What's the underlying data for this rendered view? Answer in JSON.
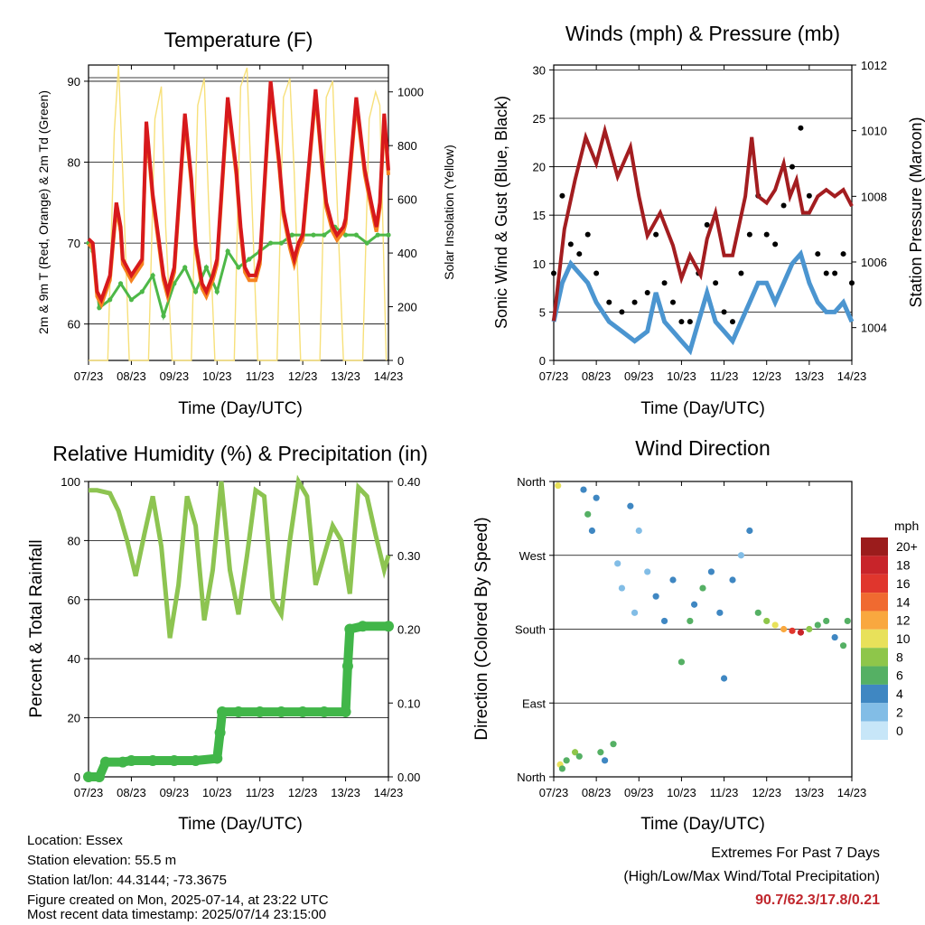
{
  "panels": {
    "temperature": {
      "title": "Temperature (F)",
      "ylabel_left": "2m & 9m T (Red, Orange) & 2m Td (Green)",
      "ylabel_right": "Solar Insolation (Yellow)",
      "xlabel": "Time (Day/UTC)"
    },
    "winds": {
      "title": "Winds (mph) & Pressure (mb)",
      "ylabel_left": "Sonic Wind & Gust (Blue, Black)",
      "ylabel_right": "Station Pressure (Maroon)",
      "xlabel": "Time (Day/UTC)"
    },
    "humidity": {
      "title": "Relative Humidity (%) & Precipitation (in)",
      "ylabel_left": "Percent & Total Rainfall",
      "xlabel": "Time (Day/UTC)"
    },
    "direction": {
      "title": "Wind Direction",
      "ylabel_left": "Direction (Colored By Speed)",
      "xlabel": "Time (Day/UTC)",
      "colorbar_title": "mph",
      "colorbar_labels": [
        "20+",
        "18",
        "16",
        "14",
        "12",
        "10",
        "8",
        "6",
        "4",
        "2",
        "0"
      ],
      "colorbar_colors": [
        "#9b1c1c",
        "#c8242a",
        "#e0362d",
        "#f06a30",
        "#f9a83f",
        "#e8e15a",
        "#8ec64a",
        "#55b064",
        "#3f87c2",
        "#82bde6",
        "#c7e6f8"
      ]
    }
  },
  "colors": {
    "temp2m": "#d7191c",
    "temp9m": "#f6821f",
    "dewpoint": "#4db848",
    "solar": "#f7e07a",
    "wind": "#4b95d0",
    "gust": "#000000",
    "pressure": "#a31d20",
    "rh": "#8dc451",
    "precip": "#41b649"
  },
  "chart_data": [
    {
      "type": "line",
      "title": "Temperature (F)",
      "xlabel": "Time (Day/UTC)",
      "x_ticks": [
        "07/23",
        "08/23",
        "09/23",
        "10/23",
        "11/23",
        "12/23",
        "13/23",
        "14/23"
      ],
      "xlim": [
        7,
        14
      ],
      "ylim": [
        55.5,
        92
      ],
      "y_ticks": [
        60,
        70,
        80,
        90
      ],
      "y2lim": [
        0,
        1100
      ],
      "y2_ticks": [
        0,
        200,
        400,
        600,
        800,
        1000
      ],
      "series": [
        {
          "name": "2m & 9m T (Red, Orange)",
          "axis": "left",
          "x": [
            7.0,
            7.1,
            7.2,
            7.3,
            7.5,
            7.65,
            7.75,
            7.8,
            7.9,
            8.0,
            8.25,
            8.35,
            8.5,
            8.65,
            8.75,
            8.85,
            9.0,
            9.25,
            9.4,
            9.5,
            9.65,
            9.75,
            9.9,
            10.0,
            10.25,
            10.45,
            10.55,
            10.65,
            10.75,
            10.9,
            11.0,
            11.25,
            11.45,
            11.55,
            11.7,
            11.8,
            11.9,
            12.0,
            12.3,
            12.45,
            12.55,
            12.7,
            12.8,
            12.95,
            13.0,
            13.25,
            13.45,
            13.6,
            13.72,
            13.8,
            13.9,
            14.0
          ],
          "y": [
            70.5,
            70,
            64,
            63,
            66,
            75,
            72,
            68,
            67,
            66,
            68,
            85,
            76,
            70,
            66,
            64,
            67,
            86,
            78,
            70,
            65,
            64,
            66,
            68,
            88,
            79,
            72,
            67,
            66,
            66,
            68,
            90,
            80,
            74,
            70,
            68,
            70,
            71,
            89,
            80,
            75,
            72,
            71,
            72,
            73,
            88,
            79,
            75,
            72,
            75,
            86,
            79
          ]
        },
        {
          "name": "2m Td (Green)",
          "axis": "left",
          "x": [
            7.0,
            7.1,
            7.25,
            7.5,
            7.75,
            8.0,
            8.25,
            8.5,
            8.75,
            9.0,
            9.25,
            9.5,
            9.75,
            10.0,
            10.25,
            10.5,
            10.75,
            11.0,
            11.25,
            11.5,
            11.75,
            12.0,
            12.25,
            12.5,
            12.75,
            13.0,
            13.25,
            13.5,
            13.75,
            14.0
          ],
          "y": [
            70,
            69,
            62,
            63,
            65,
            63,
            64,
            66,
            61,
            65,
            67,
            64,
            67,
            64,
            69,
            67,
            68,
            69,
            70,
            70,
            71,
            71,
            71,
            71,
            72,
            71,
            71,
            70,
            71,
            71
          ]
        },
        {
          "name": "Solar Insolation (Yellow)",
          "axis": "right",
          "x": [
            7.0,
            7.45,
            7.6,
            7.7,
            7.8,
            7.95,
            8.4,
            8.55,
            8.7,
            8.8,
            8.95,
            9.4,
            9.55,
            9.7,
            9.8,
            9.95,
            10.4,
            10.55,
            10.7,
            10.8,
            10.95,
            11.4,
            11.55,
            11.7,
            11.8,
            11.95,
            12.4,
            12.55,
            12.7,
            12.8,
            12.95,
            13.4,
            13.55,
            13.7,
            13.8,
            13.95
          ],
          "y": [
            0,
            0,
            850,
            1100,
            700,
            0,
            0,
            900,
            1020,
            500,
            0,
            0,
            950,
            1050,
            600,
            0,
            0,
            1020,
            1090,
            650,
            0,
            0,
            980,
            1050,
            700,
            0,
            0,
            980,
            1040,
            600,
            0,
            0,
            900,
            1000,
            950,
            0
          ]
        }
      ]
    },
    {
      "type": "line",
      "title": "Winds (mph) & Pressure (mb)",
      "xlabel": "Time (Day/UTC)",
      "x_ticks": [
        "07/23",
        "08/23",
        "09/23",
        "10/23",
        "11/23",
        "12/23",
        "13/23",
        "14/23"
      ],
      "xlim": [
        7,
        14
      ],
      "ylim": [
        0,
        30.5
      ],
      "y_ticks": [
        0,
        5,
        10,
        15,
        20,
        25,
        30
      ],
      "y2lim": [
        1003,
        1012
      ],
      "y2_ticks": [
        1004,
        1006,
        1008,
        1010,
        1012
      ],
      "series": [
        {
          "name": "Sonic Wind & Gust (Blue, Black)",
          "axis": "left",
          "x": [
            7.0,
            7.2,
            7.4,
            7.6,
            7.8,
            8.0,
            8.3,
            8.6,
            8.9,
            9.2,
            9.4,
            9.6,
            9.8,
            10.0,
            10.2,
            10.4,
            10.6,
            10.8,
            11.0,
            11.2,
            11.4,
            11.6,
            11.8,
            12.0,
            12.2,
            12.4,
            12.6,
            12.8,
            13.0,
            13.2,
            13.4,
            13.6,
            13.8,
            14.0
          ],
          "y": [
            4,
            8,
            10,
            9,
            8,
            6,
            4,
            3,
            2,
            3,
            7,
            4,
            3,
            2,
            1,
            4,
            7,
            4,
            3,
            2,
            4,
            6,
            8,
            8,
            6,
            8,
            10,
            11,
            8,
            6,
            5,
            5,
            6,
            4
          ]
        },
        {
          "name": "Gust",
          "axis": "left",
          "x": [
            7.0,
            7.2,
            7.4,
            7.6,
            7.8,
            8.0,
            8.3,
            8.6,
            8.9,
            9.2,
            9.4,
            9.6,
            9.8,
            10.0,
            10.2,
            10.4,
            10.6,
            10.8,
            11.0,
            11.2,
            11.4,
            11.6,
            11.8,
            12.0,
            12.2,
            12.4,
            12.6,
            12.8,
            13.0,
            13.2,
            13.4,
            13.6,
            13.8,
            14.0
          ],
          "y": [
            9,
            17,
            12,
            11,
            13,
            9,
            6,
            5,
            6,
            7,
            13,
            8,
            6,
            4,
            4,
            9,
            14,
            8,
            5,
            4,
            9,
            13,
            17,
            13,
            12,
            16,
            20,
            24,
            17,
            11,
            9,
            9,
            11,
            8
          ]
        },
        {
          "name": "Station Pressure (Maroon)",
          "axis": "right",
          "x": [
            7.0,
            7.25,
            7.5,
            7.75,
            8.0,
            8.2,
            8.5,
            8.8,
            9.0,
            9.2,
            9.5,
            9.8,
            10.0,
            10.2,
            10.45,
            10.6,
            10.8,
            11.0,
            11.2,
            11.5,
            11.65,
            11.8,
            12.0,
            12.2,
            12.4,
            12.55,
            12.7,
            12.85,
            13.0,
            13.2,
            13.4,
            13.6,
            13.8,
            14.0
          ],
          "y": [
            1004.2,
            1007.0,
            1008.5,
            1009.8,
            1009.0,
            1010.0,
            1008.6,
            1009.5,
            1008.0,
            1006.8,
            1007.5,
            1006.5,
            1005.5,
            1006.2,
            1005.6,
            1006.7,
            1007.5,
            1006.2,
            1006.2,
            1008.0,
            1009.8,
            1008.0,
            1007.8,
            1008.2,
            1009.0,
            1008.0,
            1008.5,
            1007.5,
            1007.5,
            1008.0,
            1008.2,
            1008.0,
            1008.2,
            1007.7
          ]
        }
      ]
    },
    {
      "type": "line",
      "title": "Relative Humidity (%) & Precipitation (in)",
      "xlabel": "Time (Day/UTC)",
      "x_ticks": [
        "07/23",
        "08/23",
        "09/23",
        "10/23",
        "11/23",
        "12/23",
        "13/23",
        "14/23"
      ],
      "xlim": [
        7,
        14
      ],
      "ylim": [
        0,
        100
      ],
      "y_ticks": [
        0,
        20,
        40,
        60,
        80,
        100
      ],
      "y2lim": [
        0,
        0.4
      ],
      "y2_ticks": [
        0.0,
        0.1,
        0.2,
        0.3,
        0.4
      ],
      "series": [
        {
          "name": "Relative Humidity",
          "axis": "left",
          "x": [
            7.0,
            7.2,
            7.5,
            7.7,
            7.9,
            8.1,
            8.3,
            8.5,
            8.7,
            8.9,
            9.1,
            9.3,
            9.5,
            9.7,
            9.9,
            10.1,
            10.3,
            10.5,
            10.7,
            10.9,
            11.1,
            11.3,
            11.5,
            11.7,
            11.9,
            12.1,
            12.3,
            12.5,
            12.7,
            12.9,
            13.1,
            13.3,
            13.5,
            13.7,
            13.9,
            14.0
          ],
          "y": [
            97,
            97,
            96,
            90,
            80,
            68,
            82,
            95,
            78,
            47,
            65,
            95,
            85,
            53,
            70,
            100,
            70,
            55,
            75,
            97,
            95,
            60,
            55,
            80,
            100,
            95,
            65,
            75,
            85,
            80,
            62,
            98,
            95,
            82,
            70,
            75
          ]
        },
        {
          "name": "Total Rainfall",
          "axis": "right",
          "x": [
            7.0,
            7.25,
            7.4,
            7.8,
            8.0,
            8.5,
            9.0,
            9.5,
            10.0,
            10.07,
            10.12,
            10.5,
            11.0,
            11.5,
            12.0,
            12.5,
            13.0,
            13.05,
            13.1,
            13.4,
            14.0
          ],
          "y": [
            0.0,
            0.0,
            0.02,
            0.02,
            0.022,
            0.022,
            0.022,
            0.022,
            0.025,
            0.06,
            0.088,
            0.088,
            0.088,
            0.088,
            0.088,
            0.088,
            0.088,
            0.15,
            0.2,
            0.204,
            0.204
          ]
        }
      ]
    },
    {
      "type": "scatter",
      "title": "Wind Direction",
      "xlabel": "Time (Day/UTC)",
      "ylabel": "Direction (Colored By Speed)",
      "x_ticks": [
        "07/23",
        "08/23",
        "09/23",
        "10/23",
        "11/23",
        "12/23",
        "13/23",
        "14/23"
      ],
      "xlim": [
        7,
        14
      ],
      "y_ticks": [
        "North",
        "East",
        "South",
        "West",
        "North"
      ],
      "ylim": [
        0,
        360
      ],
      "colorbar": {
        "label": "mph",
        "levels": [
          "0",
          "2",
          "4",
          "6",
          "8",
          "10",
          "12",
          "14",
          "16",
          "18",
          "20+"
        ]
      },
      "series": [
        {
          "name": "Direction",
          "x": [
            7.1,
            7.15,
            7.2,
            7.3,
            7.5,
            7.6,
            7.7,
            7.8,
            7.9,
            8.0,
            8.1,
            8.2,
            8.4,
            8.5,
            8.6,
            8.8,
            8.9,
            9.0,
            9.2,
            9.4,
            9.6,
            9.8,
            10.0,
            10.2,
            10.3,
            10.5,
            10.7,
            10.9,
            11.0,
            11.2,
            11.4,
            11.6,
            11.8,
            12.0,
            12.2,
            12.4,
            12.6,
            12.8,
            13.0,
            13.2,
            13.4,
            13.6,
            13.8,
            13.9
          ],
          "y": [
            355,
            15,
            10,
            20,
            30,
            25,
            350,
            320,
            300,
            340,
            30,
            20,
            40,
            260,
            230,
            330,
            200,
            300,
            250,
            220,
            190,
            240,
            140,
            190,
            210,
            230,
            250,
            200,
            120,
            240,
            270,
            300,
            200,
            190,
            185,
            180,
            178,
            176,
            180,
            185,
            190,
            170,
            160,
            190
          ],
          "speed": [
            9,
            10,
            6,
            5,
            8,
            5,
            4,
            6,
            4,
            3,
            5,
            4,
            6,
            2,
            2,
            3,
            1,
            2,
            2,
            3,
            3,
            4,
            5,
            6,
            4,
            5,
            4,
            3,
            4,
            3,
            2,
            4,
            5,
            8,
            10,
            12,
            16,
            18,
            8,
            6,
            5,
            4,
            6,
            5
          ]
        }
      ]
    }
  ],
  "footer": {
    "location": "Location: Essex",
    "elevation": "Station elevation: 55.5 m",
    "latlon": "Station lat/lon: 44.3144; -73.3675",
    "created": "Figure created on Mon, 2025-07-14, at 23:22 UTC",
    "recent": "Most recent data timestamp: 2025/07/14 23:15:00",
    "extremes_title": "Extremes For Past 7 Days",
    "extremes_subtitle": "(High/Low/Max Wind/Total Precipitation)",
    "extremes_values": "90.7/62.3/17.8/0.21"
  }
}
